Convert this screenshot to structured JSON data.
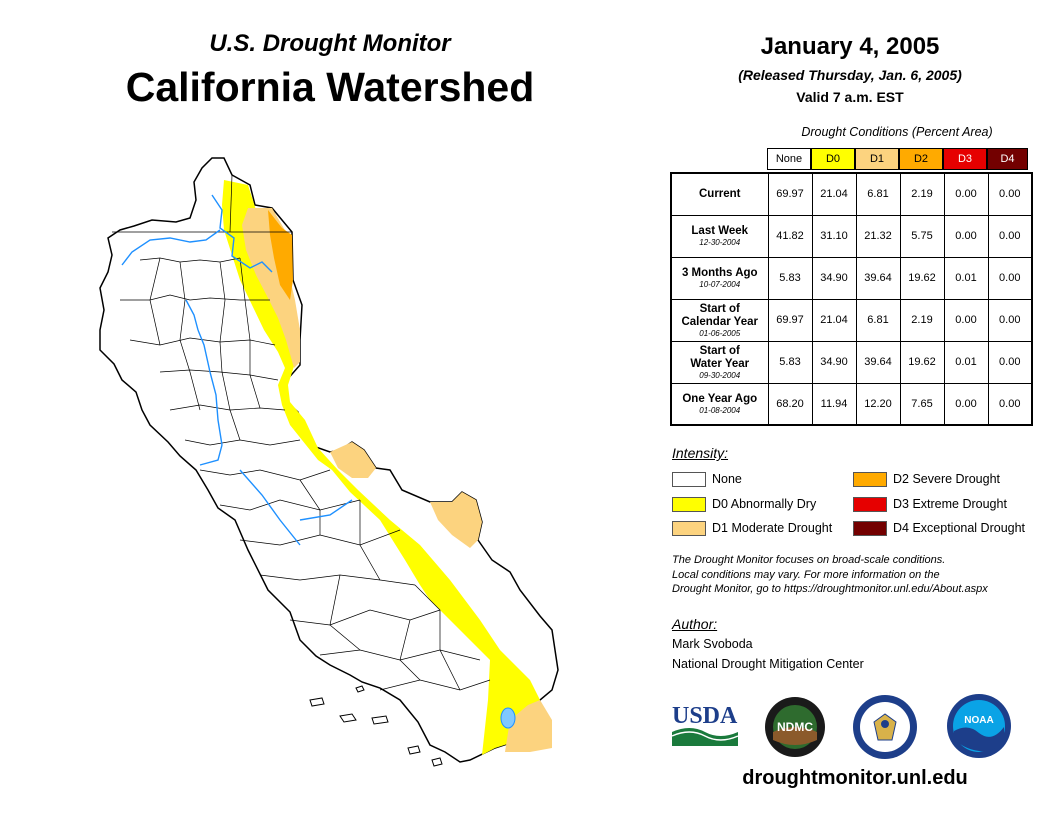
{
  "header": {
    "subtitle": "U.S. Drought Monitor",
    "title": "California Watershed",
    "date": "January 4, 2005",
    "released": "(Released Thursday, Jan. 6, 2005)",
    "valid": "Valid 7 a.m. EST"
  },
  "table": {
    "heading": "Drought Conditions (Percent Area)",
    "columns": [
      {
        "label": "None",
        "color": "#ffffff",
        "text_color": "#000000"
      },
      {
        "label": "D0",
        "color": "#ffff00",
        "text_color": "#000000"
      },
      {
        "label": "D1",
        "color": "#fcd37f",
        "text_color": "#000000"
      },
      {
        "label": "D2",
        "color": "#ffaa00",
        "text_color": "#000000"
      },
      {
        "label": "D3",
        "color": "#e60000",
        "text_color": "#ffffff"
      },
      {
        "label": "D4",
        "color": "#730000",
        "text_color": "#ffffff"
      }
    ],
    "rows": [
      {
        "label_lines": [
          "Current"
        ],
        "date": "",
        "values": [
          "69.97",
          "21.04",
          "6.81",
          "2.19",
          "0.00",
          "0.00"
        ]
      },
      {
        "label_lines": [
          "Last Week"
        ],
        "date": "12-30-2004",
        "values": [
          "41.82",
          "31.10",
          "21.32",
          "5.75",
          "0.00",
          "0.00"
        ]
      },
      {
        "label_lines": [
          "3 Months Ago"
        ],
        "date": "10-07-2004",
        "values": [
          "5.83",
          "34.90",
          "39.64",
          "19.62",
          "0.01",
          "0.00"
        ]
      },
      {
        "label_lines": [
          "Start of",
          "Calendar Year"
        ],
        "date": "01-06-2005",
        "values": [
          "69.97",
          "21.04",
          "6.81",
          "2.19",
          "0.00",
          "0.00"
        ]
      },
      {
        "label_lines": [
          "Start of",
          "Water Year"
        ],
        "date": "09-30-2004",
        "values": [
          "5.83",
          "34.90",
          "39.64",
          "19.62",
          "0.01",
          "0.00"
        ]
      },
      {
        "label_lines": [
          "One Year Ago"
        ],
        "date": "01-08-2004",
        "values": [
          "68.20",
          "11.94",
          "12.20",
          "7.65",
          "0.00",
          "0.00"
        ]
      }
    ]
  },
  "legend": {
    "title": "Intensity:",
    "items": [
      {
        "label": "None",
        "color": "#ffffff"
      },
      {
        "label": "D0 Abnormally Dry",
        "color": "#ffff00"
      },
      {
        "label": "D1 Moderate Drought",
        "color": "#fcd37f"
      },
      {
        "label": "D2 Severe Drought",
        "color": "#ffaa00"
      },
      {
        "label": "D3 Extreme Drought",
        "color": "#e60000"
      },
      {
        "label": "D4 Exceptional Drought",
        "color": "#730000"
      }
    ]
  },
  "note": {
    "lines": [
      "The Drought Monitor focuses on broad-scale conditions.",
      "Local conditions may vary. For more information on the",
      "Drought Monitor, go to https://droughtmonitor.unl.edu/About.aspx"
    ]
  },
  "author": {
    "heading": "Author:",
    "name": "Mark Svoboda",
    "org": "National Drought Mitigation Center"
  },
  "logos": {
    "usda": "USDA",
    "ndmc": "NDMC",
    "noaa": "NOAA"
  },
  "website": "droughtmonitor.unl.edu",
  "map": {
    "river_color": "#1e90ff",
    "icons": [
      "california-watershed-map",
      "usda-logo",
      "ndmc-logo",
      "commerce-seal-logo",
      "noaa-logo"
    ]
  }
}
